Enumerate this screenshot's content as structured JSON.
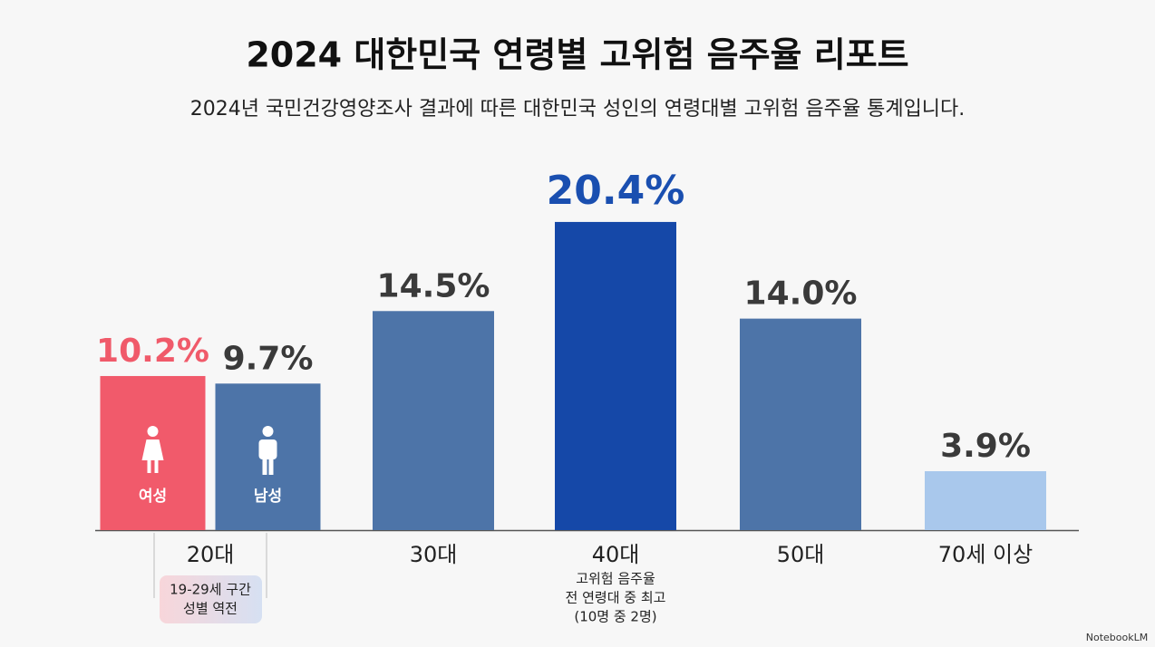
{
  "chart_data": {
    "type": "bar",
    "title": "2024 대한민국 연령별 고위험 음주율 리포트",
    "subtitle": "2024년 국민건강영양조사 결과에 따른 대한민국 성인의 연령대별 고위험 음주율 통계입니다.",
    "groups": [
      {
        "name": "20대",
        "bars": [
          {
            "name": "여성",
            "value": 10.2,
            "value_label": "10.2%",
            "color": "#f15a6b",
            "label_color": "#f05a6a"
          },
          {
            "name": "남성",
            "value": 9.7,
            "value_label": "9.7%",
            "color": "#4d74a8",
            "label_color": "#3a3a3a"
          }
        ],
        "note": [
          "19-29세 구간",
          "성별 역전"
        ]
      },
      {
        "name": "30대",
        "bars": [
          {
            "value": 14.5,
            "value_label": "14.5%",
            "color": "#4d74a8",
            "label_color": "#3a3a3a"
          }
        ]
      },
      {
        "name": "40대",
        "bars": [
          {
            "value": 20.4,
            "value_label": "20.4%",
            "color": "#1548a8",
            "label_color": "#1a4fb0"
          }
        ],
        "note": [
          "고위험 음주율",
          "전 연령대 중 최고",
          "(10명 중 2명)"
        ]
      },
      {
        "name": "50대",
        "bars": [
          {
            "value": 14.0,
            "value_label": "14.0%",
            "color": "#4d74a8",
            "label_color": "#3a3a3a"
          }
        ]
      },
      {
        "name": "70세 이상",
        "bars": [
          {
            "value": 3.9,
            "value_label": "3.9%",
            "color": "#a9c8ec",
            "label_color": "#3a3a3a"
          }
        ]
      }
    ],
    "footer": "NotebookLM"
  }
}
